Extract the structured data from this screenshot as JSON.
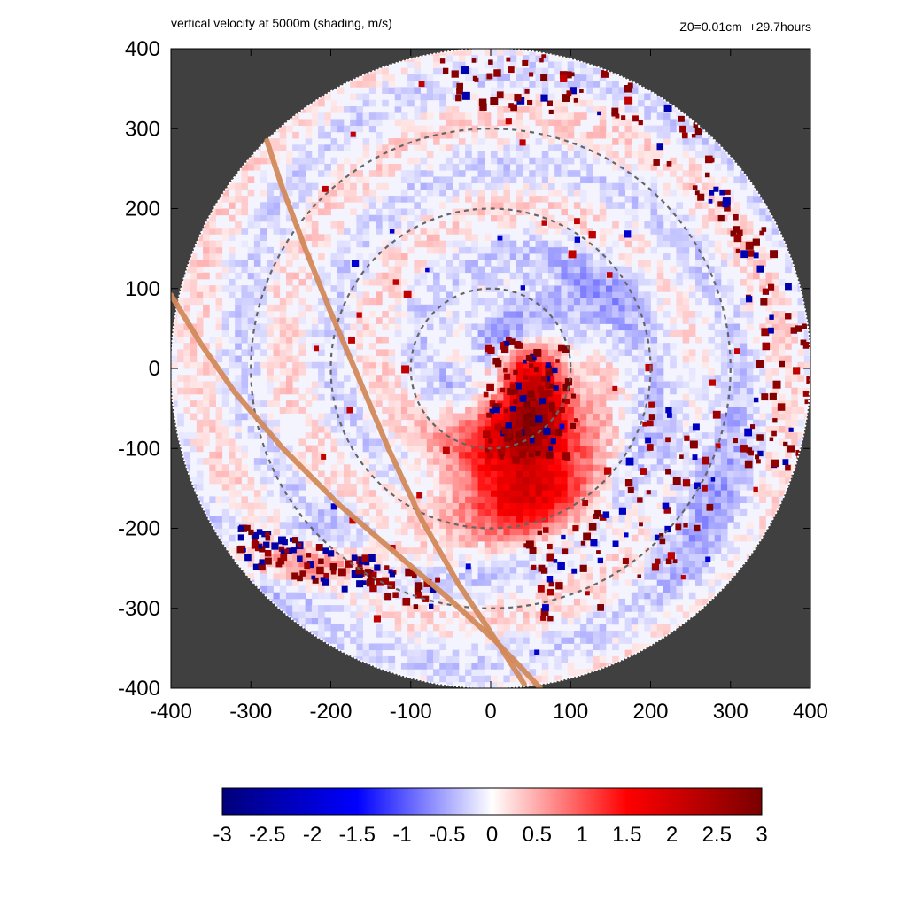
{
  "chart_data": {
    "type": "heatmap",
    "title": "vertical velocity at 5000m (shading, m/s)",
    "subtitle": "Z0=0.01cm  +29.7hours",
    "xlim": [
      -400,
      400
    ],
    "ylim": [
      -400,
      400
    ],
    "xticks": [
      "-400",
      "-300",
      "-200",
      "-100",
      "0",
      "100",
      "200",
      "300",
      "400"
    ],
    "yticks": [
      "400",
      "300",
      "200",
      "100",
      "0",
      "-100",
      "-200",
      "-300",
      "-400"
    ],
    "xlabel": "",
    "ylabel": "",
    "domain_radius": 400,
    "range_rings": [
      100,
      200,
      300
    ],
    "colorbar": {
      "min": -3,
      "max": 3,
      "ticks": [
        "-3",
        "-2.5",
        "-2",
        "-1.5",
        "-1",
        "-0.5",
        "0",
        "0.5",
        "1",
        "1.5",
        "2",
        "2.5",
        "3"
      ],
      "colors": [
        "#00007a",
        "#0000ff",
        "#ffffff",
        "#ff0000",
        "#7a0000"
      ]
    },
    "outside_color": "#404040",
    "track_color": "#d2895a",
    "tracks": [
      {
        "points": [
          [
            -280,
            285
          ],
          [
            -262,
            230
          ],
          [
            -232,
            150
          ],
          [
            -200,
            70
          ],
          [
            -166,
            -10
          ],
          [
            -128,
            -100
          ],
          [
            -86,
            -190
          ],
          [
            -40,
            -270
          ],
          [
            0,
            -330
          ],
          [
            42,
            -395
          ]
        ]
      },
      {
        "points": [
          [
            -400,
            92
          ],
          [
            -362,
            30
          ],
          [
            -320,
            -30
          ],
          [
            -260,
            -100
          ],
          [
            -190,
            -170
          ],
          [
            -120,
            -230
          ],
          [
            -50,
            -290
          ],
          [
            5,
            -340
          ],
          [
            36,
            -372
          ],
          [
            62,
            -400
          ]
        ]
      }
    ],
    "features": [
      {
        "kind": "updraft",
        "x": 30,
        "y": -110,
        "rx": 80,
        "ry": 70,
        "w": 1.6
      },
      {
        "kind": "updraft",
        "x": 60,
        "y": -60,
        "rx": 45,
        "ry": 55,
        "w": 1.8
      },
      {
        "kind": "updraft",
        "x": 40,
        "y": -170,
        "rx": 75,
        "ry": 45,
        "w": 0.9
      },
      {
        "kind": "updraft",
        "x": 60,
        "y": 10,
        "rx": 35,
        "ry": 45,
        "w": 1.2
      },
      {
        "kind": "downdraft",
        "x": 40,
        "y": 55,
        "rx": 90,
        "ry": 40,
        "w": -0.5
      },
      {
        "kind": "downdraft",
        "x": 110,
        "y": 90,
        "rx": 90,
        "ry": 60,
        "w": -0.4
      },
      {
        "kind": "downdraft",
        "x": -40,
        "y": -10,
        "rx": 30,
        "ry": 25,
        "w": -0.5
      },
      {
        "kind": "downdraft",
        "x": -200,
        "y": -240,
        "rx": 170,
        "ry": 50,
        "w": -0.6
      },
      {
        "kind": "downdraft",
        "x": 260,
        "y": -150,
        "rx": 70,
        "ry": 140,
        "w": -0.4
      },
      {
        "kind": "updraft",
        "x": -150,
        "y": -230,
        "rx": 120,
        "ry": 30,
        "w": 0.5
      },
      {
        "kind": "updraft",
        "x": -250,
        "y": -245,
        "rx": 150,
        "ry": 25,
        "w": 0.8
      }
    ]
  }
}
